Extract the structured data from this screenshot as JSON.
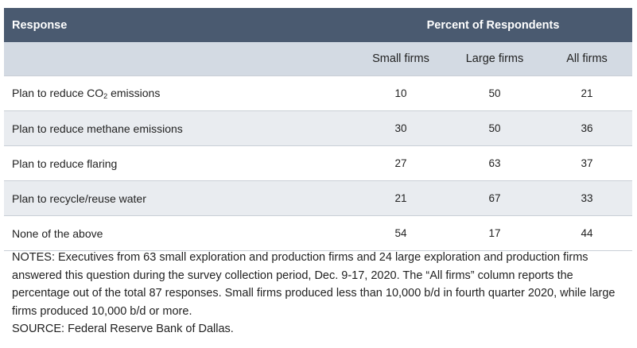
{
  "chart_data": {
    "type": "table",
    "header": {
      "response": "Response",
      "group": "Percent of Respondents",
      "columns": [
        "Small firms",
        "Large firms",
        "All firms"
      ]
    },
    "rows": [
      {
        "label_prefix": "Plan to reduce CO",
        "label_sub": "2",
        "label_suffix": " emissions",
        "values": [
          10,
          50,
          21
        ]
      },
      {
        "label": "Plan to reduce methane emissions",
        "values": [
          30,
          50,
          36
        ]
      },
      {
        "label": "Plan to reduce flaring",
        "values": [
          27,
          63,
          37
        ]
      },
      {
        "label": "Plan to recycle/reuse water",
        "values": [
          21,
          67,
          33
        ]
      },
      {
        "label": "None of the above",
        "values": [
          54,
          17,
          44
        ]
      }
    ]
  },
  "notes": "NOTES: Executives from 63 small exploration and production firms and 24 large exploration and production firms answered this question during the survey collection period, Dec. 9-17, 2020. The “All firms” column reports the percentage out of the total 87 responses. Small firms produced less than 10,000 b/d in fourth quarter 2020, while large firms produced 10,000 b/d or more.",
  "source": "SOURCE: Federal Reserve Bank of Dallas."
}
